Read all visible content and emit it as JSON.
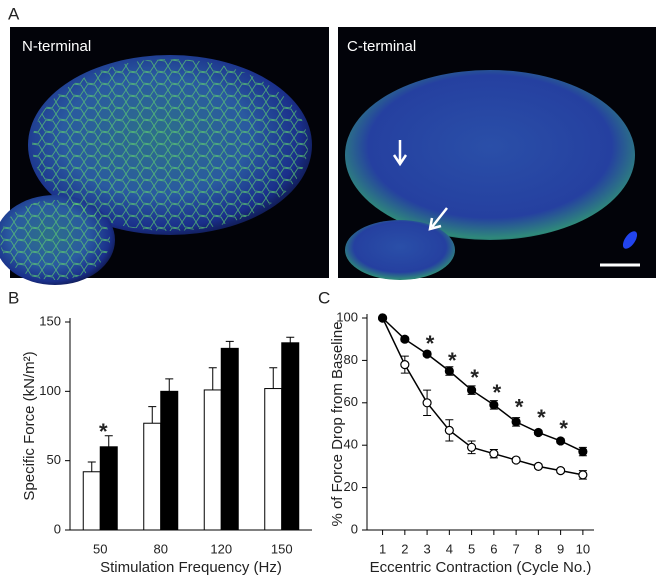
{
  "panels": {
    "a": {
      "label": "A",
      "left_caption": "N-terminal",
      "right_caption": "C-terminal"
    }
  },
  "chart_data": [
    {
      "type": "bar",
      "panel_label": "B",
      "ylabel": "Specific Force (kN/m²)",
      "xlabel": "Stimulation Frequency (Hz)",
      "categories": [
        "50",
        "80",
        "120",
        "150"
      ],
      "series": [
        {
          "color": "#ffffff",
          "values": [
            42,
            77,
            101,
            102
          ],
          "errors": [
            7,
            12,
            16,
            15
          ]
        },
        {
          "color": "#000000",
          "values": [
            60,
            100,
            131,
            135
          ],
          "errors": [
            8,
            9,
            5,
            4
          ]
        }
      ],
      "ylim": [
        0,
        150
      ],
      "yticks": [
        0,
        50,
        100,
        150
      ],
      "annotations": [
        {
          "text": "*",
          "category": 0,
          "y": 74
        }
      ]
    },
    {
      "type": "line",
      "panel_label": "C",
      "ylabel": "% of Force Drop from Baseline",
      "xlabel": "Eccentric Contraction (Cycle No.)",
      "x": [
        1,
        2,
        3,
        4,
        5,
        6,
        7,
        8,
        9,
        10
      ],
      "series": [
        {
          "color": "#ffffff",
          "values": [
            100,
            78,
            60,
            47,
            39,
            36,
            33,
            30,
            28,
            26
          ],
          "errors": [
            0,
            4,
            6,
            5,
            3,
            2,
            1,
            1,
            1,
            2
          ]
        },
        {
          "color": "#000000",
          "values": [
            100,
            90,
            83,
            75,
            66,
            59,
            51,
            46,
            42,
            37
          ],
          "errors": [
            0,
            1,
            1,
            2,
            2,
            2,
            2,
            1,
            1,
            2
          ]
        }
      ],
      "xlim": [
        0.3,
        10.5
      ],
      "ylim": [
        0,
        100
      ],
      "xticks": [
        1,
        2,
        3,
        4,
        5,
        6,
        7,
        8,
        9,
        10
      ],
      "yticks": [
        0,
        20,
        40,
        60,
        80,
        100
      ],
      "annotations": [
        {
          "text": "*",
          "x": 3,
          "y": 90
        },
        {
          "text": "*",
          "x": 4,
          "y": 82
        },
        {
          "text": "*",
          "x": 5,
          "y": 74
        },
        {
          "text": "*",
          "x": 6,
          "y": 67
        },
        {
          "text": "*",
          "x": 7,
          "y": 60
        },
        {
          "text": "*",
          "x": 8,
          "y": 55
        },
        {
          "text": "*",
          "x": 9,
          "y": 50
        }
      ]
    }
  ]
}
